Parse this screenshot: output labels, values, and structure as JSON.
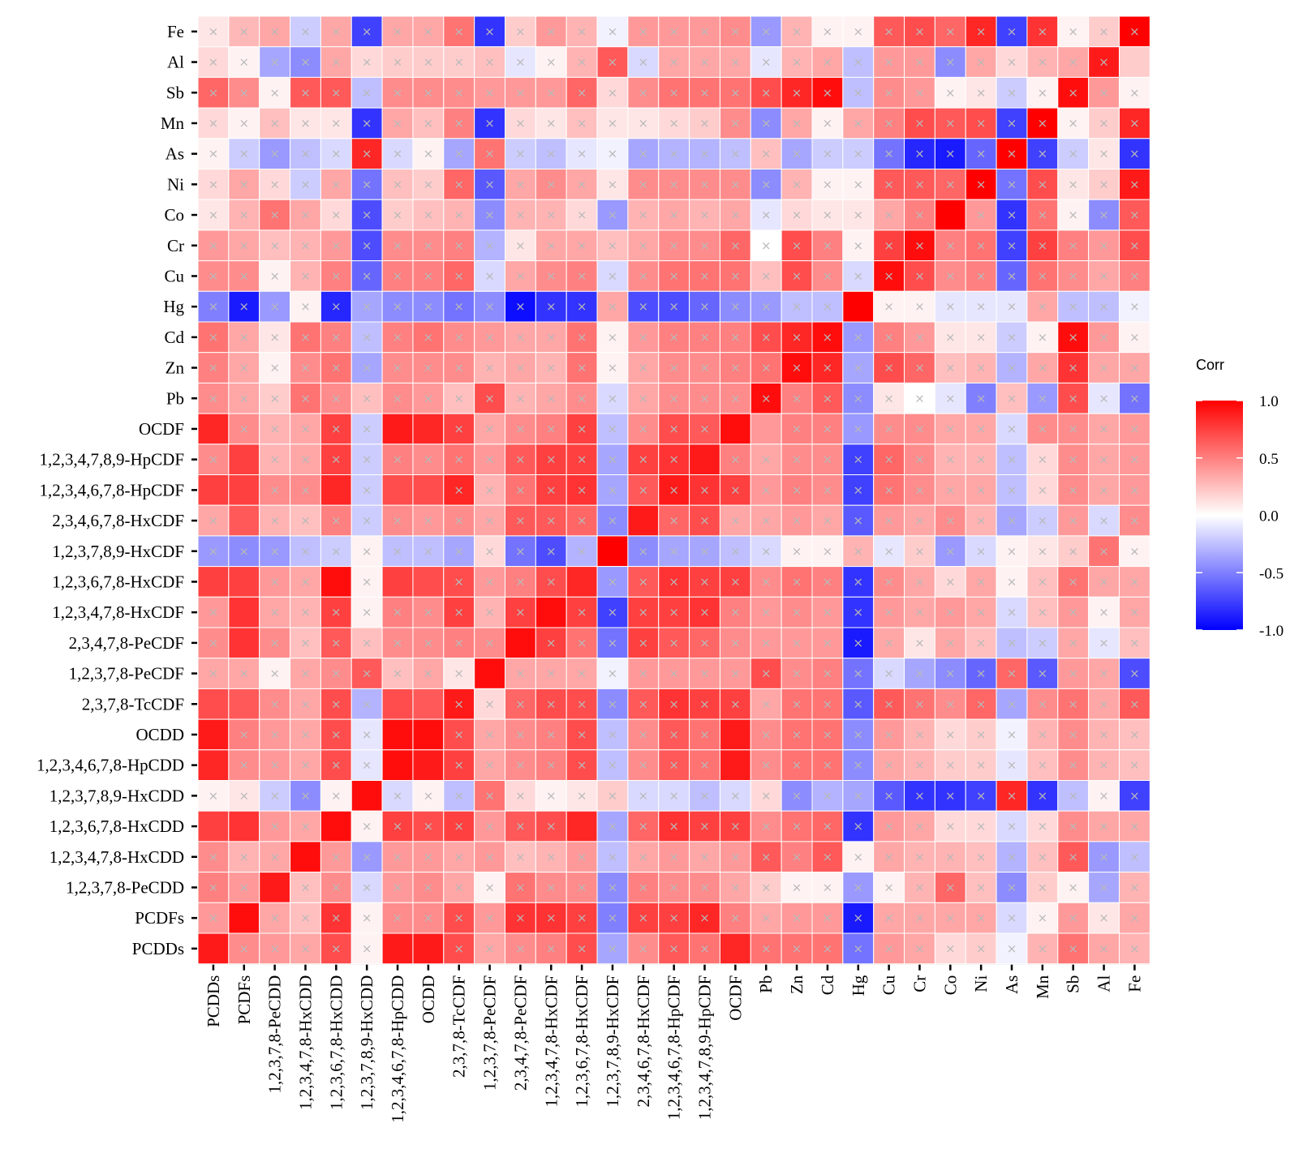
{
  "chart_data": {
    "type": "heatmap",
    "title": "",
    "xlabel": "",
    "ylabel": "",
    "legend_title": "Corr",
    "legend_ticks": [
      1.0,
      0.5,
      0.0,
      -0.5,
      -1.0
    ],
    "legend_tick_labels": [
      "1.0",
      "0.5",
      "0.0",
      "-0.5",
      "-1.0"
    ],
    "value_range": [
      -1,
      1
    ],
    "colors": {
      "low": "#0000ff",
      "mid": "#ffffff",
      "high": "#ff0000",
      "grid": "#ffffff",
      "panel_border": "#d9d9d9"
    },
    "insignificant_marker": "×",
    "x_labels": [
      "PCDDs",
      "PCDFs",
      "1,2,3,7,8-PeCDD",
      "1,2,3,4,7,8-HxCDD",
      "1,2,3,6,7,8-HxCDD",
      "1,2,3,7,8,9-HxCDD",
      "1,2,3,4,6,7,8-HpCDD",
      "OCDD",
      "2,3,7,8-TcCDF",
      "1,2,3,7,8-PeCDF",
      "2,3,4,7,8-PeCDF",
      "1,2,3,4,7,8-HxCDF",
      "1,2,3,6,7,8-HxCDF",
      "1,2,3,7,8,9-HxCDF",
      "2,3,4,6,7,8-HxCDF",
      "1,2,3,4,6,7,8-HpCDF",
      "1,2,3,4,7,8,9-HpCDF",
      "OCDF",
      "Pb",
      "Zn",
      "Cd",
      "Hg",
      "Cu",
      "Cr",
      "Co",
      "Ni",
      "As",
      "Mn",
      "Sb",
      "Al",
      "Fe"
    ],
    "y_labels": [
      "Fe",
      "Al",
      "Sb",
      "Mn",
      "As",
      "Ni",
      "Co",
      "Cr",
      "Cu",
      "Hg",
      "Cd",
      "Zn",
      "Pb",
      "OCDF",
      "1,2,3,4,7,8,9-HpCDF",
      "1,2,3,4,6,7,8-HpCDF",
      "2,3,4,6,7,8-HxCDF",
      "1,2,3,7,8,9-HxCDF",
      "1,2,3,6,7,8-HxCDF",
      "1,2,3,4,7,8-HxCDF",
      "2,3,4,7,8-PeCDF",
      "1,2,3,7,8-PeCDF",
      "2,3,7,8-TcCDF",
      "OCDD",
      "1,2,3,4,6,7,8-HpCDD",
      "1,2,3,7,8,9-HxCDD",
      "1,2,3,6,7,8-HxCDD",
      "1,2,3,4,7,8-HxCDD",
      "1,2,3,7,8-PeCDD",
      "PCDFs",
      "PCDDs"
    ],
    "values": [
      [
        0.1,
        0.28,
        0.35,
        -0.2,
        0.35,
        -0.75,
        0.35,
        0.35,
        0.55,
        -0.8,
        0.2,
        0.4,
        0.3,
        -0.05,
        0.4,
        0.4,
        0.4,
        0.45,
        -0.4,
        0.3,
        0.05,
        0.05,
        0.65,
        0.7,
        0.6,
        0.85,
        -0.75,
        0.8,
        0.05,
        0.2,
        1.0
      ],
      [
        0.15,
        0.05,
        -0.35,
        -0.45,
        0.35,
        0.15,
        0.2,
        0.2,
        0.2,
        0.25,
        -0.1,
        0.05,
        0.3,
        0.65,
        -0.15,
        0.35,
        0.35,
        0.35,
        -0.1,
        0.3,
        0.35,
        -0.25,
        0.4,
        0.4,
        -0.45,
        0.35,
        0.15,
        0.3,
        0.35,
        0.9,
        0.2
      ],
      [
        0.6,
        0.45,
        0.05,
        0.65,
        0.65,
        -0.25,
        0.45,
        0.45,
        0.45,
        0.4,
        0.4,
        0.4,
        0.6,
        0.15,
        0.45,
        0.55,
        0.55,
        0.55,
        0.7,
        0.85,
        0.95,
        -0.25,
        0.45,
        0.4,
        0.05,
        0.1,
        -0.2,
        0.05,
        0.95,
        0.4,
        0.05
      ],
      [
        0.15,
        0.05,
        0.25,
        0.1,
        0.1,
        -0.8,
        0.35,
        0.25,
        0.5,
        -0.8,
        0.15,
        0.1,
        0.25,
        0.1,
        0.1,
        0.15,
        0.2,
        0.45,
        -0.45,
        0.35,
        0.05,
        0.35,
        0.5,
        0.7,
        0.65,
        0.7,
        -0.75,
        1.0,
        0.05,
        0.2,
        0.85
      ],
      [
        0.05,
        -0.2,
        -0.4,
        -0.25,
        -0.15,
        0.85,
        -0.15,
        0.05,
        -0.35,
        0.55,
        -0.2,
        -0.25,
        -0.1,
        -0.05,
        -0.35,
        -0.3,
        -0.3,
        -0.25,
        0.25,
        -0.35,
        -0.2,
        -0.2,
        -0.55,
        -0.85,
        -0.9,
        -0.6,
        1.0,
        -0.75,
        -0.2,
        0.1,
        -0.8
      ],
      [
        0.15,
        0.35,
        0.15,
        -0.2,
        0.35,
        -0.55,
        0.25,
        0.2,
        0.6,
        -0.65,
        0.35,
        0.45,
        0.35,
        0.1,
        0.45,
        0.45,
        0.45,
        0.45,
        -0.45,
        0.3,
        0.05,
        0.05,
        0.65,
        0.65,
        0.6,
        1.0,
        -0.55,
        0.7,
        0.1,
        0.2,
        0.9
      ],
      [
        0.1,
        0.3,
        0.55,
        0.35,
        0.15,
        -0.7,
        0.2,
        0.25,
        0.3,
        -0.45,
        0.3,
        0.3,
        0.15,
        -0.4,
        0.3,
        0.35,
        0.3,
        0.35,
        -0.1,
        0.15,
        0.1,
        0.1,
        0.35,
        0.5,
        1.0,
        0.4,
        -0.8,
        0.55,
        0.05,
        -0.45,
        0.65
      ],
      [
        0.4,
        0.35,
        0.25,
        0.3,
        0.4,
        -0.7,
        0.45,
        0.45,
        0.5,
        -0.3,
        0.1,
        0.35,
        0.35,
        0.25,
        0.35,
        0.45,
        0.45,
        0.6,
        0.0,
        0.7,
        0.5,
        0.05,
        0.75,
        0.95,
        0.5,
        0.55,
        -0.75,
        0.75,
        0.5,
        0.4,
        0.7
      ],
      [
        0.45,
        0.45,
        0.05,
        0.3,
        0.5,
        -0.6,
        0.5,
        0.5,
        0.6,
        -0.15,
        0.35,
        0.45,
        0.5,
        -0.15,
        0.45,
        0.55,
        0.55,
        0.55,
        0.25,
        0.7,
        0.45,
        -0.15,
        0.95,
        0.7,
        0.45,
        0.5,
        -0.6,
        0.55,
        0.45,
        0.35,
        0.5
      ],
      [
        -0.5,
        -0.9,
        -0.4,
        0.05,
        -0.85,
        -0.35,
        -0.45,
        -0.45,
        -0.55,
        -0.45,
        -0.95,
        -0.8,
        -0.8,
        0.35,
        -0.7,
        -0.7,
        -0.6,
        -0.45,
        -0.4,
        -0.25,
        -0.25,
        1.0,
        0.05,
        0.05,
        -0.1,
        -0.1,
        -0.1,
        0.35,
        -0.25,
        -0.25,
        -0.05
      ],
      [
        0.55,
        0.35,
        0.1,
        0.55,
        0.5,
        -0.25,
        0.5,
        0.55,
        0.45,
        0.4,
        0.35,
        0.35,
        0.55,
        0.05,
        0.4,
        0.5,
        0.5,
        0.5,
        0.7,
        0.85,
        0.95,
        -0.4,
        0.5,
        0.4,
        0.1,
        0.1,
        -0.2,
        0.05,
        0.95,
        0.4,
        0.05
      ],
      [
        0.5,
        0.35,
        0.05,
        0.45,
        0.55,
        -0.35,
        0.45,
        0.45,
        0.45,
        0.3,
        0.35,
        0.3,
        0.55,
        0.05,
        0.35,
        0.45,
        0.45,
        0.5,
        0.55,
        0.95,
        0.85,
        -0.35,
        0.7,
        0.6,
        0.25,
        0.3,
        -0.3,
        0.35,
        0.8,
        0.35,
        0.35
      ],
      [
        0.45,
        0.35,
        0.2,
        0.55,
        0.45,
        0.25,
        0.45,
        0.4,
        0.25,
        0.7,
        0.3,
        0.35,
        0.45,
        -0.15,
        0.35,
        0.45,
        0.45,
        0.45,
        0.95,
        0.5,
        0.65,
        -0.45,
        0.1,
        0.0,
        -0.1,
        -0.5,
        0.25,
        -0.4,
        0.7,
        -0.1,
        -0.55
      ],
      [
        0.85,
        0.45,
        0.3,
        0.35,
        0.75,
        -0.2,
        0.9,
        0.85,
        0.75,
        0.35,
        0.45,
        0.5,
        0.75,
        -0.25,
        0.45,
        0.7,
        0.65,
        0.95,
        0.4,
        0.5,
        0.5,
        -0.4,
        0.45,
        0.45,
        0.35,
        0.35,
        -0.15,
        0.45,
        0.45,
        0.35,
        0.4
      ],
      [
        0.45,
        0.75,
        0.3,
        0.35,
        0.75,
        -0.2,
        0.5,
        0.45,
        0.55,
        0.4,
        0.65,
        0.75,
        0.75,
        -0.35,
        0.75,
        0.8,
        0.9,
        0.5,
        0.35,
        0.45,
        0.45,
        -0.75,
        0.6,
        0.45,
        0.3,
        0.3,
        -0.25,
        0.15,
        0.45,
        0.35,
        0.4
      ],
      [
        0.75,
        0.75,
        0.45,
        0.45,
        0.85,
        -0.2,
        0.7,
        0.7,
        0.85,
        0.3,
        0.55,
        0.75,
        0.8,
        -0.35,
        0.65,
        0.9,
        0.8,
        0.75,
        0.4,
        0.5,
        0.45,
        -0.75,
        0.55,
        0.45,
        0.35,
        0.35,
        -0.25,
        0.15,
        0.45,
        0.35,
        0.4
      ],
      [
        0.35,
        0.65,
        0.3,
        0.25,
        0.5,
        -0.2,
        0.45,
        0.4,
        0.45,
        0.35,
        0.65,
        0.65,
        0.6,
        -0.45,
        0.9,
        0.6,
        0.7,
        0.35,
        0.35,
        0.4,
        0.35,
        -0.65,
        0.4,
        0.35,
        0.45,
        0.3,
        -0.35,
        -0.2,
        0.4,
        -0.15,
        0.45
      ],
      [
        -0.4,
        -0.45,
        -0.4,
        -0.25,
        -0.2,
        0.05,
        -0.25,
        -0.25,
        -0.35,
        0.15,
        -0.55,
        -0.7,
        -0.3,
        1.0,
        -0.45,
        -0.35,
        -0.35,
        -0.25,
        -0.15,
        0.05,
        0.05,
        0.3,
        -0.1,
        0.2,
        -0.4,
        -0.15,
        0.05,
        0.1,
        0.2,
        0.55,
        0.05
      ],
      [
        0.75,
        0.75,
        0.4,
        0.35,
        0.95,
        0.05,
        0.75,
        0.7,
        0.7,
        0.4,
        0.5,
        0.7,
        0.85,
        -0.4,
        0.65,
        0.8,
        0.75,
        0.75,
        0.45,
        0.55,
        0.5,
        -0.8,
        0.45,
        0.35,
        0.15,
        0.35,
        0.05,
        0.25,
        0.55,
        0.35,
        0.35
      ],
      [
        0.4,
        0.8,
        0.35,
        0.3,
        0.75,
        0.05,
        0.5,
        0.45,
        0.75,
        0.3,
        0.75,
        0.95,
        0.75,
        -0.75,
        0.75,
        0.75,
        0.8,
        0.5,
        0.4,
        0.45,
        0.4,
        -0.8,
        0.4,
        0.35,
        0.4,
        0.35,
        -0.15,
        0.25,
        0.4,
        0.05,
        0.35
      ],
      [
        0.45,
        0.8,
        0.45,
        0.25,
        0.65,
        0.25,
        0.45,
        0.45,
        0.5,
        0.45,
        0.95,
        0.75,
        0.55,
        -0.55,
        0.75,
        0.65,
        0.6,
        0.45,
        0.4,
        0.4,
        0.4,
        -0.9,
        0.35,
        0.1,
        0.35,
        0.25,
        -0.25,
        -0.2,
        0.35,
        -0.1,
        0.25
      ],
      [
        0.35,
        0.35,
        0.05,
        0.35,
        0.45,
        0.65,
        0.25,
        0.35,
        0.1,
        0.95,
        0.35,
        0.35,
        0.35,
        -0.05,
        0.4,
        0.4,
        0.4,
        0.4,
        0.7,
        0.45,
        0.5,
        -0.55,
        -0.15,
        -0.35,
        -0.45,
        -0.6,
        0.6,
        -0.65,
        0.4,
        0.35,
        -0.7
      ],
      [
        0.7,
        0.65,
        0.45,
        0.35,
        0.7,
        -0.3,
        0.7,
        0.65,
        0.9,
        0.15,
        0.6,
        0.7,
        0.7,
        -0.45,
        0.65,
        0.8,
        0.75,
        0.75,
        0.35,
        0.55,
        0.55,
        -0.65,
        0.65,
        0.55,
        0.45,
        0.6,
        -0.35,
        0.45,
        0.55,
        0.35,
        0.65
      ],
      [
        0.9,
        0.5,
        0.4,
        0.35,
        0.7,
        -0.1,
        0.95,
        0.95,
        0.7,
        0.35,
        0.45,
        0.5,
        0.7,
        -0.25,
        0.45,
        0.65,
        0.55,
        0.9,
        0.45,
        0.55,
        0.55,
        -0.45,
        0.4,
        0.3,
        0.15,
        0.2,
        -0.05,
        0.3,
        0.45,
        0.3,
        0.25
      ],
      [
        0.85,
        0.45,
        0.4,
        0.35,
        0.7,
        -0.1,
        0.95,
        0.9,
        0.75,
        0.35,
        0.45,
        0.5,
        0.7,
        -0.25,
        0.45,
        0.65,
        0.55,
        0.9,
        0.45,
        0.55,
        0.55,
        -0.45,
        0.35,
        0.3,
        0.2,
        0.2,
        -0.1,
        0.25,
        0.45,
        0.3,
        0.25
      ],
      [
        0.05,
        0.1,
        -0.2,
        -0.45,
        0.05,
        0.95,
        -0.15,
        0.05,
        -0.25,
        0.55,
        0.15,
        0.05,
        0.1,
        0.2,
        -0.15,
        -0.15,
        -0.25,
        -0.15,
        0.15,
        -0.45,
        -0.3,
        -0.35,
        -0.65,
        -0.8,
        -0.8,
        -0.75,
        0.85,
        -0.8,
        -0.25,
        0.05,
        -0.75
      ],
      [
        0.75,
        0.8,
        0.4,
        0.35,
        0.95,
        0.05,
        0.75,
        0.7,
        0.75,
        0.4,
        0.65,
        0.7,
        0.85,
        -0.35,
        0.6,
        0.8,
        0.75,
        0.75,
        0.45,
        0.55,
        0.6,
        -0.8,
        0.4,
        0.35,
        0.15,
        0.15,
        -0.15,
        0.15,
        0.45,
        0.35,
        0.35
      ],
      [
        0.45,
        0.3,
        0.35,
        0.95,
        0.4,
        -0.4,
        0.4,
        0.4,
        0.35,
        0.4,
        0.25,
        0.3,
        0.4,
        -0.25,
        0.35,
        0.4,
        0.35,
        0.4,
        0.65,
        0.5,
        0.65,
        0.05,
        0.35,
        0.3,
        0.3,
        0.25,
        -0.3,
        0.25,
        0.65,
        -0.4,
        -0.25
      ],
      [
        0.5,
        0.4,
        0.9,
        0.25,
        0.45,
        -0.15,
        0.4,
        0.45,
        0.35,
        0.05,
        0.55,
        0.45,
        0.45,
        -0.45,
        0.5,
        0.45,
        0.45,
        0.35,
        0.2,
        0.05,
        0.05,
        -0.4,
        0.05,
        0.3,
        0.6,
        0.25,
        -0.45,
        0.2,
        0.05,
        -0.35,
        0.3
      ],
      [
        0.4,
        0.95,
        0.35,
        0.25,
        0.8,
        0.05,
        0.45,
        0.45,
        0.7,
        0.4,
        0.8,
        0.8,
        0.75,
        -0.5,
        0.75,
        0.75,
        0.85,
        0.5,
        0.35,
        0.4,
        0.4,
        -0.9,
        0.35,
        0.35,
        0.35,
        0.35,
        -0.15,
        0.05,
        0.4,
        0.1,
        0.35
      ],
      [
        0.9,
        0.45,
        0.4,
        0.35,
        0.7,
        0.05,
        0.9,
        0.9,
        0.7,
        0.35,
        0.45,
        0.5,
        0.7,
        -0.35,
        0.45,
        0.65,
        0.55,
        0.85,
        0.55,
        0.55,
        0.55,
        -0.55,
        0.4,
        0.35,
        0.15,
        0.2,
        -0.05,
        0.3,
        0.55,
        0.35,
        0.3
      ]
    ],
    "significant": [
      "0000000000000000000000000000000",
      "0000000000000000000000000000001",
      "0000000000000000000000000000000",
      "0000000000000000000000000000000",
      "0000000000000000000000000000000",
      "0000000000000000000000000000000",
      "0000000000000000000000001000000",
      "0000000000000000000000000000000",
      "0000000000000000000000000000000",
      "0000000000000000000001000000000",
      "0000000000000000000000000000000",
      "0000000000000000000000000000000",
      "0000000000000000000000000000000",
      "1000001100000000011000000000000",
      "0100000000000000100000000000000",
      "1100101100000000000000000000000",
      "0100000000000010000000000000000",
      "0000000000000100000000000000000",
      "1100101100001000000000000000000",
      "0100000000010000000000000000000",
      "0100000000100000000000000000000",
      "0000000001000000000000000000000",
      "1100001100000000000000000000000",
      "1000001100000000010000000000000",
      "1000001100000000010000000000000",
      "0000010000000000000000000000000",
      "1100100000001000000000000000000",
      "0001000000000000000000000000000",
      "0010000000000000000000000000000",
      "0100000000000000000000000000000",
      "1000001100000000010000000000000"
    ]
  }
}
